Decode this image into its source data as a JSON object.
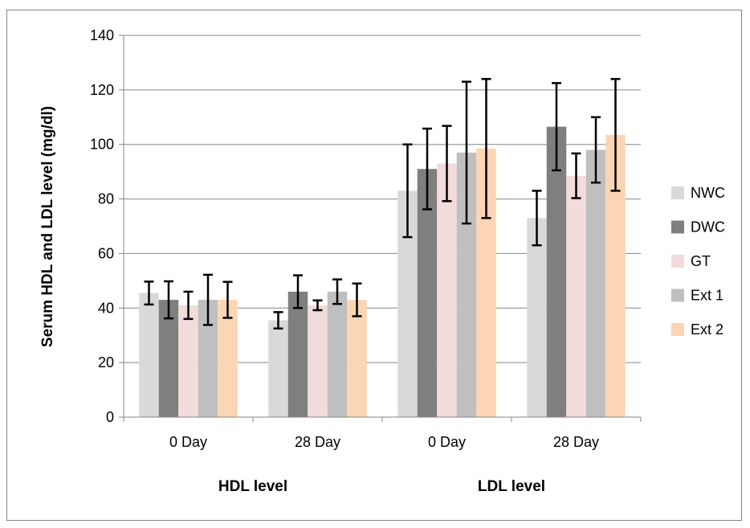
{
  "chart_data": {
    "type": "bar",
    "title": "",
    "xlabel": "",
    "ylabel": "Serum HDL and LDL level (mg/dl)",
    "ylim": [
      0,
      140
    ],
    "yticks": [
      0,
      20,
      40,
      60,
      80,
      100,
      120,
      140
    ],
    "grid": true,
    "legend_position": "right",
    "categories": [
      "0 Day",
      "28 Day",
      "0 Day",
      "28 Day"
    ],
    "groups": [
      {
        "label": "HDL level",
        "categories": [
          0,
          1
        ]
      },
      {
        "label": "LDL level",
        "categories": [
          2,
          3
        ]
      }
    ],
    "series": [
      {
        "name": "NWC",
        "color": "#d9d9d9",
        "values": [
          45.5,
          35.5,
          83,
          73
        ],
        "errors": [
          4.2,
          3.0,
          17,
          10
        ]
      },
      {
        "name": "DWC",
        "color": "#7f7f7f",
        "values": [
          43,
          46,
          91,
          106.5
        ],
        "errors": [
          6.8,
          6.0,
          14.8,
          16
        ]
      },
      {
        "name": "GT",
        "color": "#f2dcdb",
        "values": [
          41,
          41,
          93,
          88.5
        ],
        "errors": [
          5.0,
          1.8,
          13.8,
          8.2
        ]
      },
      {
        "name": "Ext 1",
        "color": "#bfbfbf",
        "values": [
          43,
          46,
          97,
          98
        ],
        "errors": [
          9.2,
          4.5,
          26,
          12
        ]
      },
      {
        "name": "Ext 2",
        "color": "#fcd5b5",
        "values": [
          43,
          43,
          98.5,
          103.5
        ],
        "errors": [
          6.6,
          6.0,
          25.5,
          20.5
        ]
      }
    ]
  }
}
